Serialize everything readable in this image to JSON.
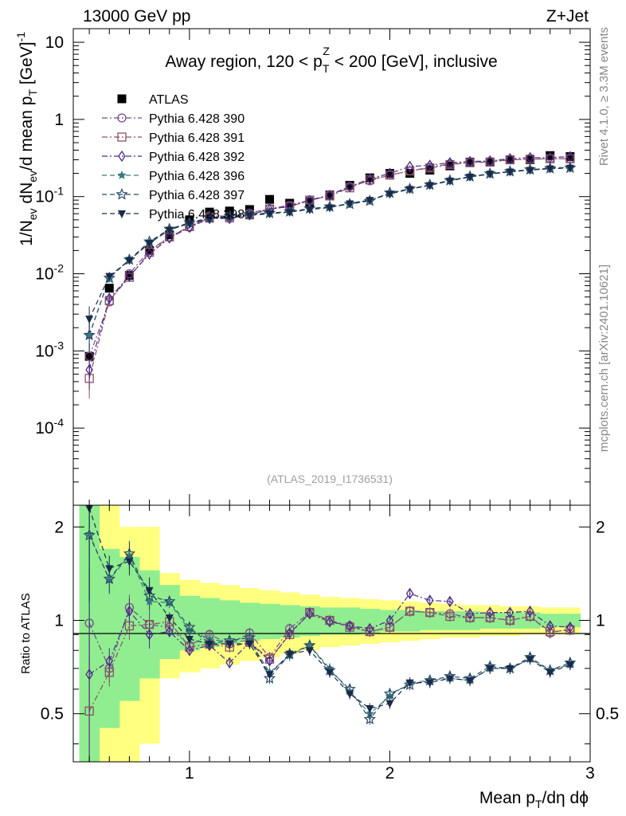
{
  "header": {
    "left": "13000 GeV pp",
    "right": "Z+Jet"
  },
  "side_labels": {
    "rivet": "Rivet 4.1.0, ≥ 3.3M events",
    "mcplots": "mcplots.cern.ch [arXiv:2401.10621]"
  },
  "chart_data": [
    {
      "type": "scatter",
      "title": "Away region, 120 < pT^Z < 200 [GeV], inclusive",
      "title_parts": {
        "pre": "Away region, 120 < p",
        "sup": "Z",
        "sub": "T",
        "post": " < 200 [GeV], inclusive"
      },
      "analysis_label": "(ATLAS_2019_I1736531)",
      "ylabel": "1/N_ev dN_ev/d mean p_T [GeV]^-1",
      "ylabel_parts": {
        "a": "1/N",
        "a_sub": "ev",
        "b": " dN",
        "b_sub": "ev",
        "c": "/d mean p",
        "c_sub": "T",
        "d": " [GeV]",
        "d_sup": "-1"
      },
      "xlabel": "Mean p_T/dη dφ",
      "xlim": [
        0.42,
        3.0
      ],
      "ylim": [
        1e-05,
        15
      ],
      "yscale": "log",
      "ytick_labels": [
        {
          "base": "10",
          "exp": "-4",
          "value": 0.0001
        },
        {
          "base": "10",
          "exp": "-3",
          "value": 0.001
        },
        {
          "base": "10",
          "exp": "-2",
          "value": 0.01
        },
        {
          "base": "10",
          "exp": "-1",
          "value": 0.1
        },
        {
          "base": "1",
          "exp": "",
          "value": 1
        },
        {
          "base": "10",
          "exp": "",
          "value": 10
        }
      ],
      "xtick_labels": [
        "1",
        "2",
        "3"
      ],
      "legend_location": "upper-left",
      "x": [
        0.5,
        0.6,
        0.7,
        0.8,
        0.9,
        1.0,
        1.1,
        1.2,
        1.3,
        1.4,
        1.5,
        1.6,
        1.7,
        1.8,
        1.9,
        2.0,
        2.1,
        2.2,
        2.3,
        2.4,
        2.5,
        2.6,
        2.7,
        2.8,
        2.9
      ],
      "series": [
        {
          "name": "ATLAS",
          "color": "#000000",
          "marker": "filled-square",
          "style": "points",
          "values": [
            0.00085,
            0.0065,
            0.0095,
            0.02,
            0.032,
            0.05,
            0.063,
            0.065,
            0.068,
            0.092,
            0.082,
            0.085,
            0.105,
            0.14,
            0.175,
            0.2,
            0.2,
            0.22,
            0.25,
            0.28,
            0.28,
            0.3,
            0.3,
            0.34,
            0.33
          ]
        },
        {
          "name": "Pythia 6.428 390",
          "color": "#7a4a8a",
          "marker": "open-circle",
          "style": "dash-dot",
          "values": [
            0.00085,
            0.0043,
            0.01,
            0.02,
            0.03,
            0.04,
            0.056,
            0.056,
            0.061,
            0.07,
            0.077,
            0.09,
            0.105,
            0.135,
            0.16,
            0.19,
            0.215,
            0.24,
            0.265,
            0.28,
            0.285,
            0.3,
            0.305,
            0.31,
            0.31
          ]
        },
        {
          "name": "Pythia 6.428 391",
          "color": "#8a5060",
          "marker": "open-square",
          "style": "dash-dot",
          "values": [
            0.00044,
            0.0045,
            0.009,
            0.019,
            0.03,
            0.041,
            0.053,
            0.053,
            0.058,
            0.069,
            0.074,
            0.09,
            0.102,
            0.13,
            0.165,
            0.19,
            0.215,
            0.235,
            0.26,
            0.275,
            0.28,
            0.3,
            0.305,
            0.31,
            0.31
          ]
        },
        {
          "name": "Pythia 6.428 392",
          "color": "#4a2a8a",
          "marker": "open-diamond",
          "style": "dash-dot",
          "values": [
            0.00057,
            0.0048,
            0.0093,
            0.018,
            0.029,
            0.04,
            0.052,
            0.052,
            0.058,
            0.068,
            0.075,
            0.089,
            0.104,
            0.135,
            0.17,
            0.2,
            0.245,
            0.255,
            0.275,
            0.285,
            0.29,
            0.31,
            0.32,
            0.32,
            0.33
          ]
        },
        {
          "name": "Pythia 6.428 396",
          "color": "#3a7a80",
          "marker": "star",
          "style": "dashed",
          "values": [
            0.0016,
            0.009,
            0.015,
            0.025,
            0.037,
            0.045,
            0.052,
            0.055,
            0.058,
            0.062,
            0.063,
            0.069,
            0.073,
            0.082,
            0.09,
            0.11,
            0.125,
            0.14,
            0.16,
            0.18,
            0.195,
            0.21,
            0.22,
            0.235,
            0.24
          ]
        },
        {
          "name": "Pythia 6.428 397",
          "color": "#2a4a66",
          "marker": "open-star",
          "style": "dashed",
          "values": [
            0.0016,
            0.0088,
            0.0152,
            0.026,
            0.038,
            0.046,
            0.053,
            0.056,
            0.059,
            0.061,
            0.064,
            0.07,
            0.074,
            0.08,
            0.088,
            0.112,
            0.126,
            0.142,
            0.162,
            0.182,
            0.198,
            0.212,
            0.224,
            0.232,
            0.236
          ]
        },
        {
          "name": "Pythia 6.428 398",
          "color": "#1a2a4a",
          "marker": "filled-triangle-down",
          "style": "dashed",
          "values": [
            0.0026,
            0.0093,
            0.015,
            0.025,
            0.037,
            0.045,
            0.052,
            0.054,
            0.057,
            0.06,
            0.063,
            0.068,
            0.072,
            0.081,
            0.09,
            0.108,
            0.125,
            0.14,
            0.16,
            0.18,
            0.197,
            0.21,
            0.22,
            0.23,
            0.235
          ]
        }
      ]
    },
    {
      "type": "scatter",
      "ylabel": "Ratio to ATLAS",
      "xlabel": "Mean p_T/dη dφ",
      "xlim": [
        0.42,
        3.0
      ],
      "ylim": [
        0.35,
        2.35
      ],
      "yscale": "log",
      "ytick_labels": [
        {
          "label": "0.5",
          "value": 0.5
        },
        {
          "label": "1",
          "value": 1
        },
        {
          "label": "2",
          "value": 2
        }
      ],
      "bands": {
        "inner_color": "#90ee90",
        "outer_color": "#ffff80",
        "x_edges": [
          0.45,
          0.55,
          0.65,
          0.75,
          0.85,
          0.95,
          1.05,
          1.15,
          1.25,
          1.35,
          1.45,
          1.55,
          1.65,
          1.75,
          1.85,
          1.95,
          2.05,
          2.15,
          2.25,
          2.35,
          2.45,
          2.55,
          2.65,
          2.75,
          2.85,
          2.95
        ],
        "inner": [
          [
            0.3,
            2.5
          ],
          [
            0.45,
            1.7
          ],
          [
            0.55,
            1.6
          ],
          [
            0.65,
            1.45
          ],
          [
            0.75,
            1.3
          ],
          [
            0.8,
            1.2
          ],
          [
            0.82,
            1.18
          ],
          [
            0.84,
            1.16
          ],
          [
            0.86,
            1.14
          ],
          [
            0.87,
            1.13
          ],
          [
            0.88,
            1.12
          ],
          [
            0.89,
            1.11
          ],
          [
            0.9,
            1.1
          ],
          [
            0.9,
            1.1
          ],
          [
            0.91,
            1.09
          ],
          [
            0.92,
            1.08
          ],
          [
            0.92,
            1.08
          ],
          [
            0.93,
            1.07
          ],
          [
            0.93,
            1.07
          ],
          [
            0.93,
            1.07
          ],
          [
            0.94,
            1.06
          ],
          [
            0.94,
            1.06
          ],
          [
            0.94,
            1.06
          ],
          [
            0.95,
            1.05
          ],
          [
            0.95,
            1.05
          ]
        ],
        "outer": [
          [
            0.3,
            2.5
          ],
          [
            0.3,
            2.4
          ],
          [
            0.35,
            2.0
          ],
          [
            0.4,
            2.0
          ],
          [
            0.65,
            1.42
          ],
          [
            0.68,
            1.35
          ],
          [
            0.7,
            1.32
          ],
          [
            0.72,
            1.3
          ],
          [
            0.74,
            1.27
          ],
          [
            0.76,
            1.25
          ],
          [
            0.78,
            1.23
          ],
          [
            0.8,
            1.21
          ],
          [
            0.82,
            1.19
          ],
          [
            0.83,
            1.18
          ],
          [
            0.84,
            1.17
          ],
          [
            0.85,
            1.16
          ],
          [
            0.86,
            1.15
          ],
          [
            0.87,
            1.14
          ],
          [
            0.88,
            1.13
          ],
          [
            0.88,
            1.12
          ],
          [
            0.89,
            1.12
          ],
          [
            0.89,
            1.11
          ],
          [
            0.9,
            1.11
          ],
          [
            0.9,
            1.1
          ],
          [
            0.91,
            1.1
          ]
        ]
      },
      "x": [
        0.5,
        0.6,
        0.7,
        0.8,
        0.9,
        1.0,
        1.1,
        1.2,
        1.3,
        1.4,
        1.5,
        1.6,
        1.7,
        1.8,
        1.9,
        2.0,
        2.1,
        2.2,
        2.3,
        2.4,
        2.5,
        2.6,
        2.7,
        2.8,
        2.9
      ],
      "series": [
        {
          "name": "Pythia 6.428 390",
          "values": [
            0.98,
            0.7,
            1.1,
            0.97,
            0.95,
            0.83,
            0.9,
            0.84,
            0.91,
            0.76,
            0.94,
            1.06,
            1.0,
            0.96,
            0.92,
            0.95,
            1.07,
            1.06,
            1.05,
            1.02,
            1.02,
            1.0,
            1.03,
            0.91,
            0.94
          ]
        },
        {
          "name": "Pythia 6.428 391",
          "values": [
            0.51,
            0.68,
            0.96,
            0.97,
            0.99,
            0.82,
            0.84,
            0.82,
            0.85,
            0.75,
            0.9,
            1.06,
            1.0,
            0.95,
            0.92,
            0.95,
            1.07,
            1.06,
            1.03,
            1.02,
            1.02,
            1.0,
            1.03,
            0.92,
            0.93
          ]
        },
        {
          "name": "Pythia 6.428 392",
          "values": [
            0.67,
            0.74,
            1.07,
            0.9,
            0.92,
            0.8,
            0.83,
            0.73,
            0.85,
            0.74,
            0.91,
            1.05,
            0.99,
            0.96,
            0.94,
            1.0,
            1.22,
            1.16,
            1.15,
            1.05,
            1.06,
            1.06,
            1.07,
            0.96,
            0.95
          ]
        },
        {
          "name": "Pythia 6.428 396",
          "values": [
            1.9,
            1.35,
            1.62,
            1.15,
            1.14,
            0.93,
            0.87,
            0.85,
            0.86,
            0.68,
            0.77,
            0.83,
            0.7,
            0.59,
            0.5,
            0.57,
            0.63,
            0.64,
            0.65,
            0.64,
            0.7,
            0.7,
            0.75,
            0.69,
            0.72
          ]
        },
        {
          "name": "Pythia 6.428 397",
          "values": [
            1.88,
            1.36,
            1.64,
            1.2,
            1.15,
            0.95,
            0.84,
            0.86,
            0.88,
            0.65,
            0.78,
            0.83,
            0.69,
            0.6,
            0.48,
            0.58,
            0.62,
            0.64,
            0.66,
            0.65,
            0.71,
            0.7,
            0.76,
            0.69,
            0.73
          ]
        },
        {
          "name": "Pythia 6.428 398",
          "values": [
            2.3,
            1.47,
            1.55,
            1.25,
            1.02,
            0.87,
            0.84,
            0.84,
            0.84,
            0.67,
            0.78,
            0.8,
            0.68,
            0.58,
            0.52,
            0.54,
            0.63,
            0.63,
            0.65,
            0.64,
            0.7,
            0.7,
            0.75,
            0.68,
            0.72
          ]
        }
      ]
    }
  ]
}
